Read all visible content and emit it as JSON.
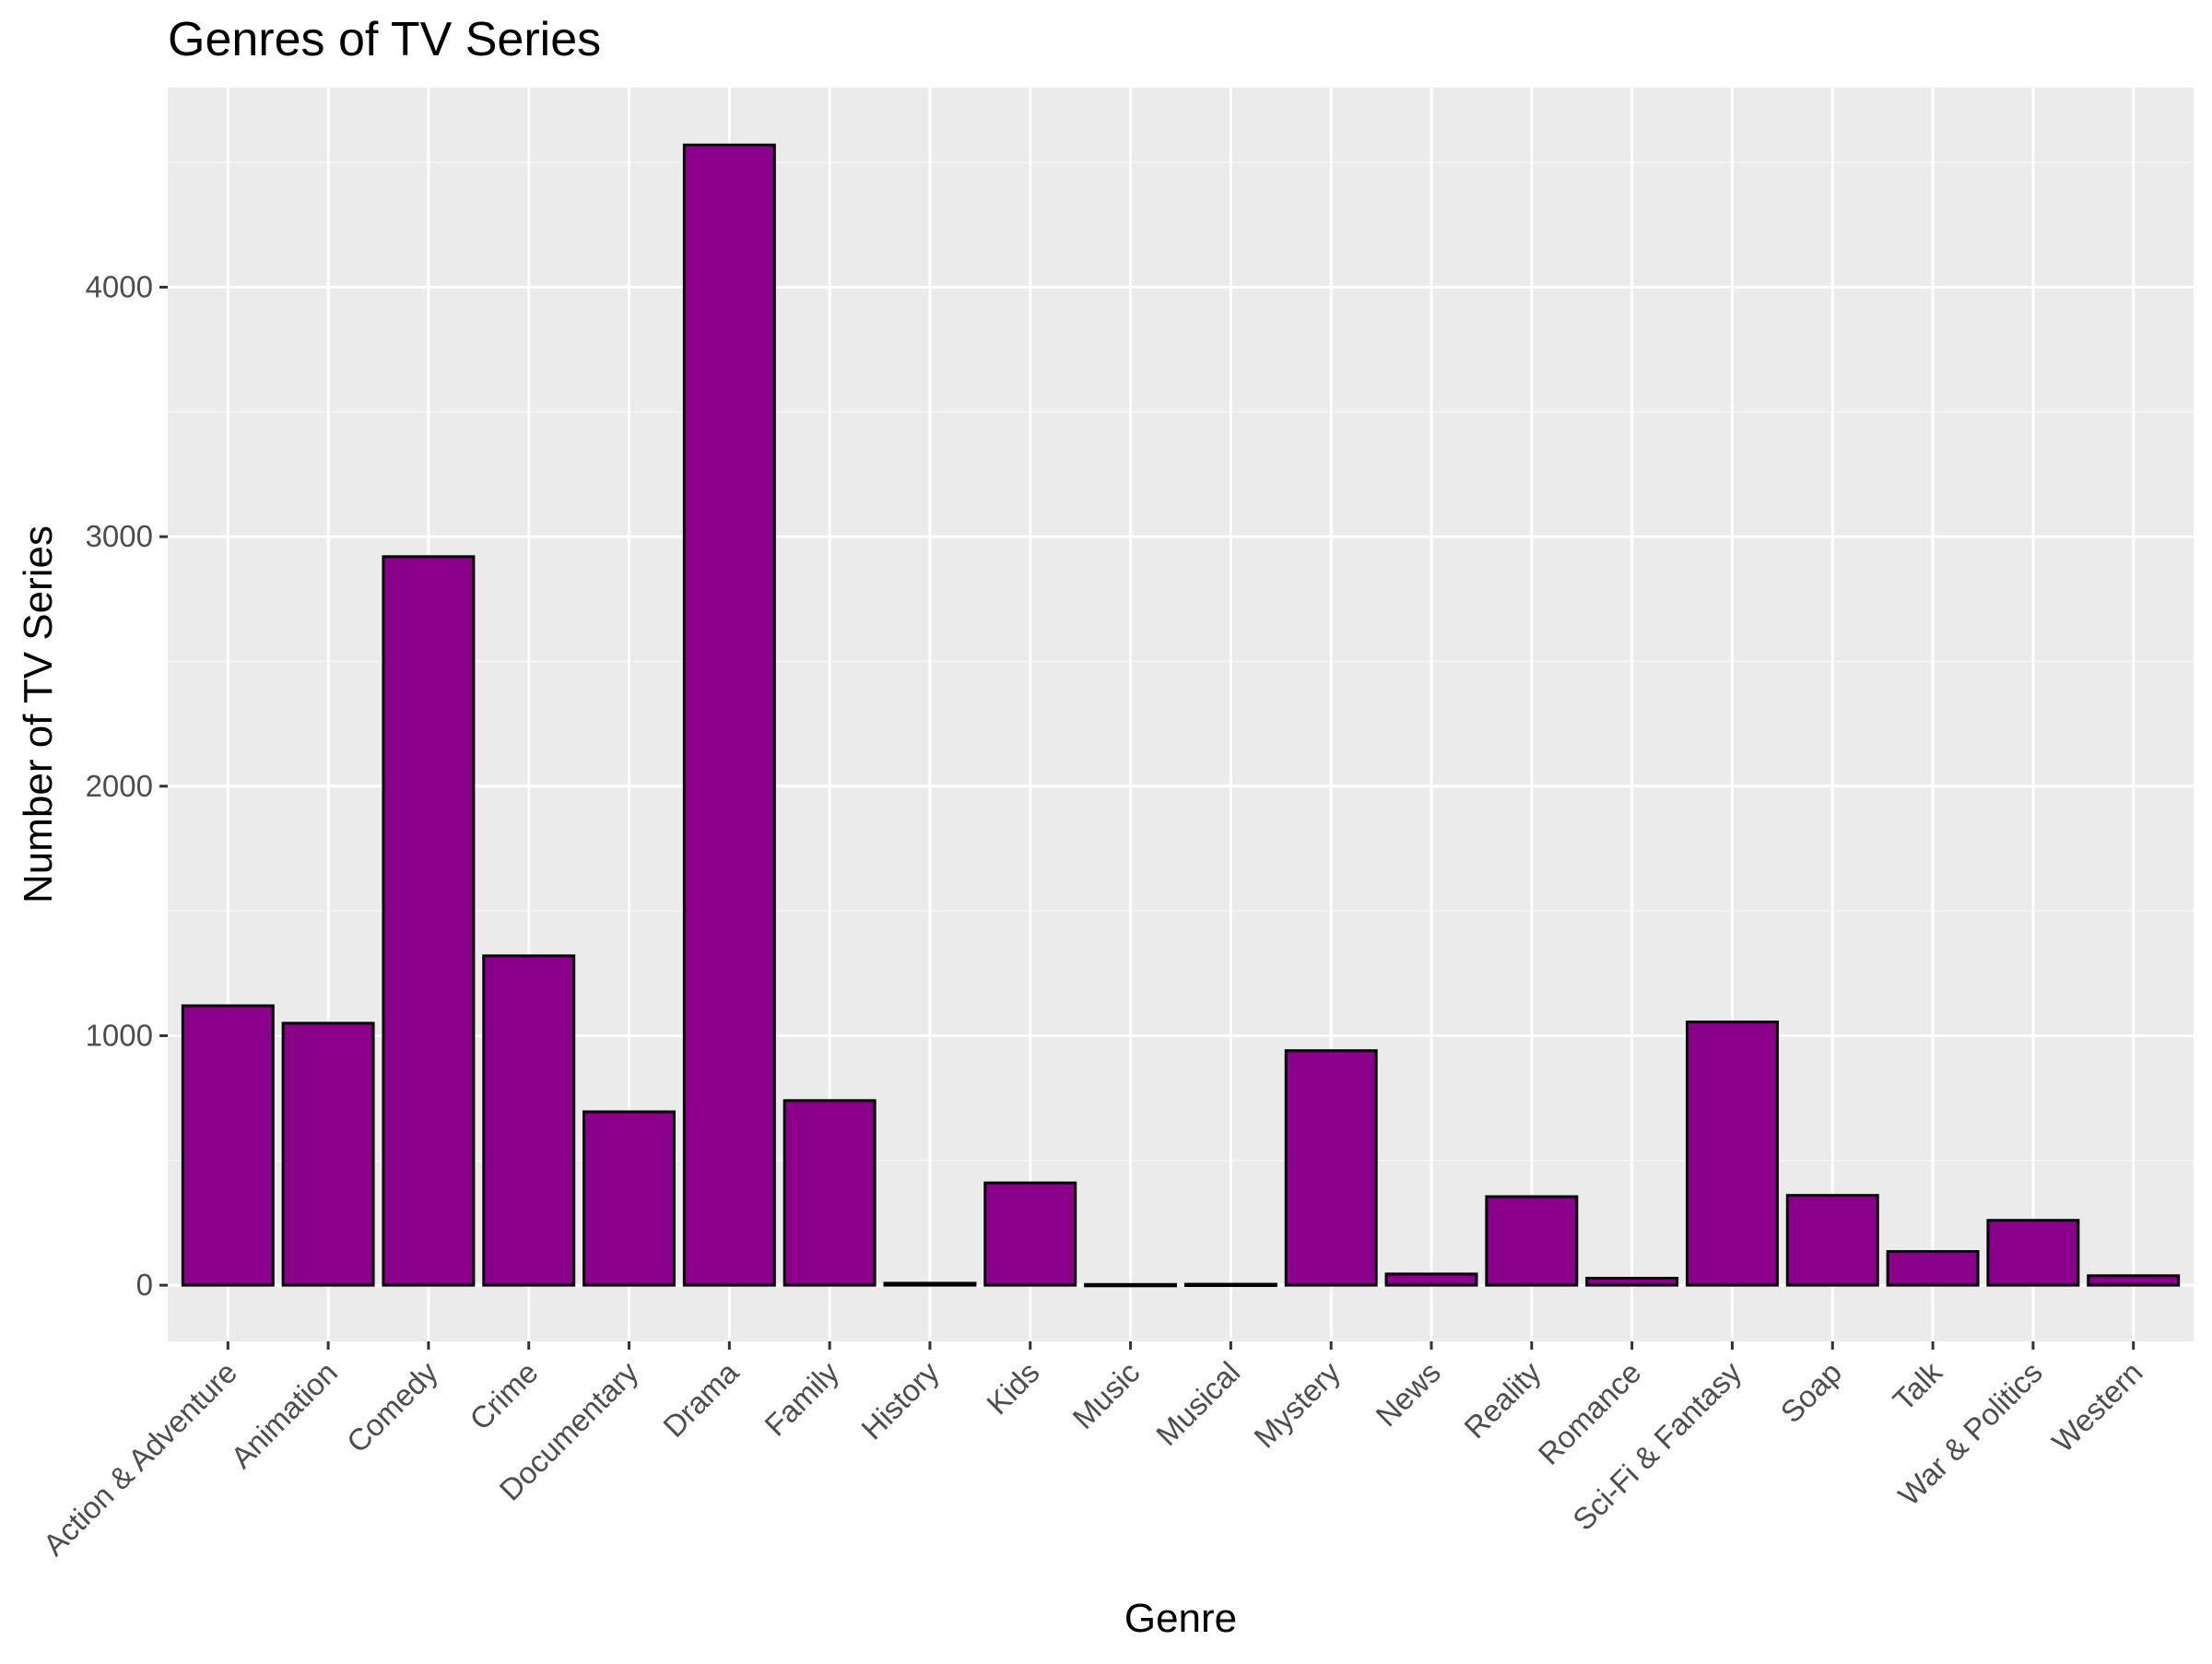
{
  "chart_data": {
    "type": "bar",
    "title": "Genres of TV Series",
    "xlabel": "Genre",
    "ylabel": "Number of TV Series",
    "categories": [
      "Action & Adventure",
      "Animation",
      "Comedy",
      "Crime",
      "Documentary",
      "Drama",
      "Family",
      "History",
      "Kids",
      "Music",
      "Musical",
      "Mystery",
      "News",
      "Reality",
      "Romance",
      "Sci-Fi & Fantasy",
      "Soap",
      "Talk",
      "War & Politics",
      "Western"
    ],
    "values": [
      1120,
      1050,
      2920,
      1320,
      695,
      4570,
      740,
      8,
      410,
      3,
      4,
      940,
      45,
      355,
      28,
      1055,
      360,
      135,
      260,
      38
    ],
    "ylim": [
      -225,
      4800
    ],
    "yticks": [
      0,
      1000,
      2000,
      3000,
      4000
    ],
    "ytick_labels": [
      "0",
      "1000",
      "2000",
      "3000",
      "4000"
    ],
    "grid": true,
    "legend": "none",
    "colors": {
      "bar_fill": "#8B008B",
      "bar_outline": "#000000",
      "panel_background": "#EBEBEB",
      "grid_major": "#FFFFFF",
      "grid_minor": "#F5F5F5",
      "tick_text": "#4D4D4D",
      "tick_mark": "#333333"
    }
  }
}
